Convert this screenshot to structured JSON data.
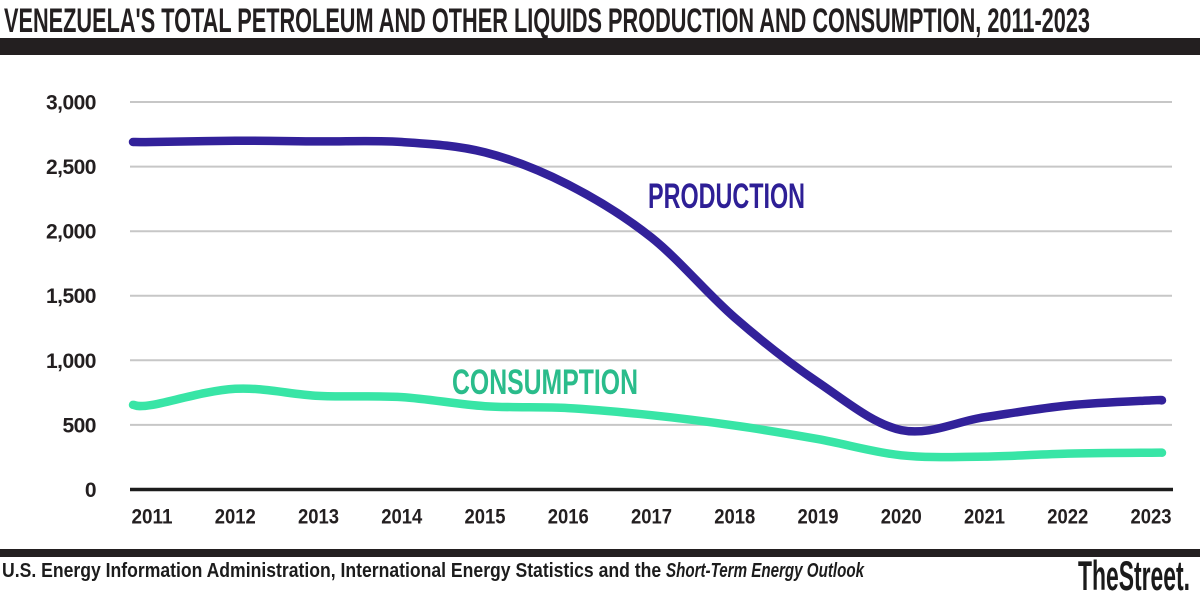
{
  "header": {
    "title": "VENEZUELA'S TOTAL PETROLEUM AND OTHER LIQUIDS PRODUCTION AND CONSUMPTION, 2011-2023"
  },
  "footer": {
    "source_regular": "U.S. Energy Information Administration, International Energy Statistics and the ",
    "source_italic": "Short-Term Energy Outlook",
    "brand": "TheStreet."
  },
  "colors": {
    "text": "#231f20",
    "title_bar": "#231f20",
    "grid": "#c7c7c7",
    "axis": "#1c1c1c",
    "production": "#32219a",
    "production_label": "#2e1f96",
    "consumption": "#38e5a6",
    "consumption_label": "#2abc8b"
  },
  "chart_data": {
    "type": "line",
    "title": "VENEZUELA'S TOTAL PETROLEUM AND OTHER LIQUIDS PRODUCTION AND CONSUMPTION, 2011-2023",
    "xlabel": "",
    "ylabel": "",
    "x": [
      2011,
      2012,
      2013,
      2014,
      2015,
      2016,
      2017,
      2018,
      2019,
      2020,
      2021,
      2022,
      2023
    ],
    "x_tick_labels": [
      "2011",
      "2012",
      "2013",
      "2014",
      "2015",
      "2016",
      "2017",
      "2018",
      "2019",
      "2020",
      "2021",
      "2022",
      "2023"
    ],
    "series": [
      {
        "name": "PRODUCTION",
        "color": "#32219a",
        "label_color": "#2e1f96",
        "values": [
          2690,
          2700,
          2695,
          2690,
          2610,
          2360,
          1950,
          1330,
          830,
          460,
          560,
          650,
          690
        ]
      },
      {
        "name": "CONSUMPTION",
        "color": "#38e5a6",
        "label_color": "#2abc8b",
        "values": [
          655,
          780,
          725,
          715,
          645,
          630,
          575,
          495,
          390,
          265,
          255,
          278,
          285
        ]
      }
    ],
    "ylim": [
      0,
      3000
    ],
    "yticks": [
      0,
      500,
      1000,
      1500,
      2000,
      2500,
      3000
    ],
    "ytick_labels": [
      "0",
      "500",
      "1,000",
      "1,500",
      "2,000",
      "2,500",
      "3,000"
    ],
    "grid": true,
    "legend_position": "inline-labels-on-chart"
  }
}
